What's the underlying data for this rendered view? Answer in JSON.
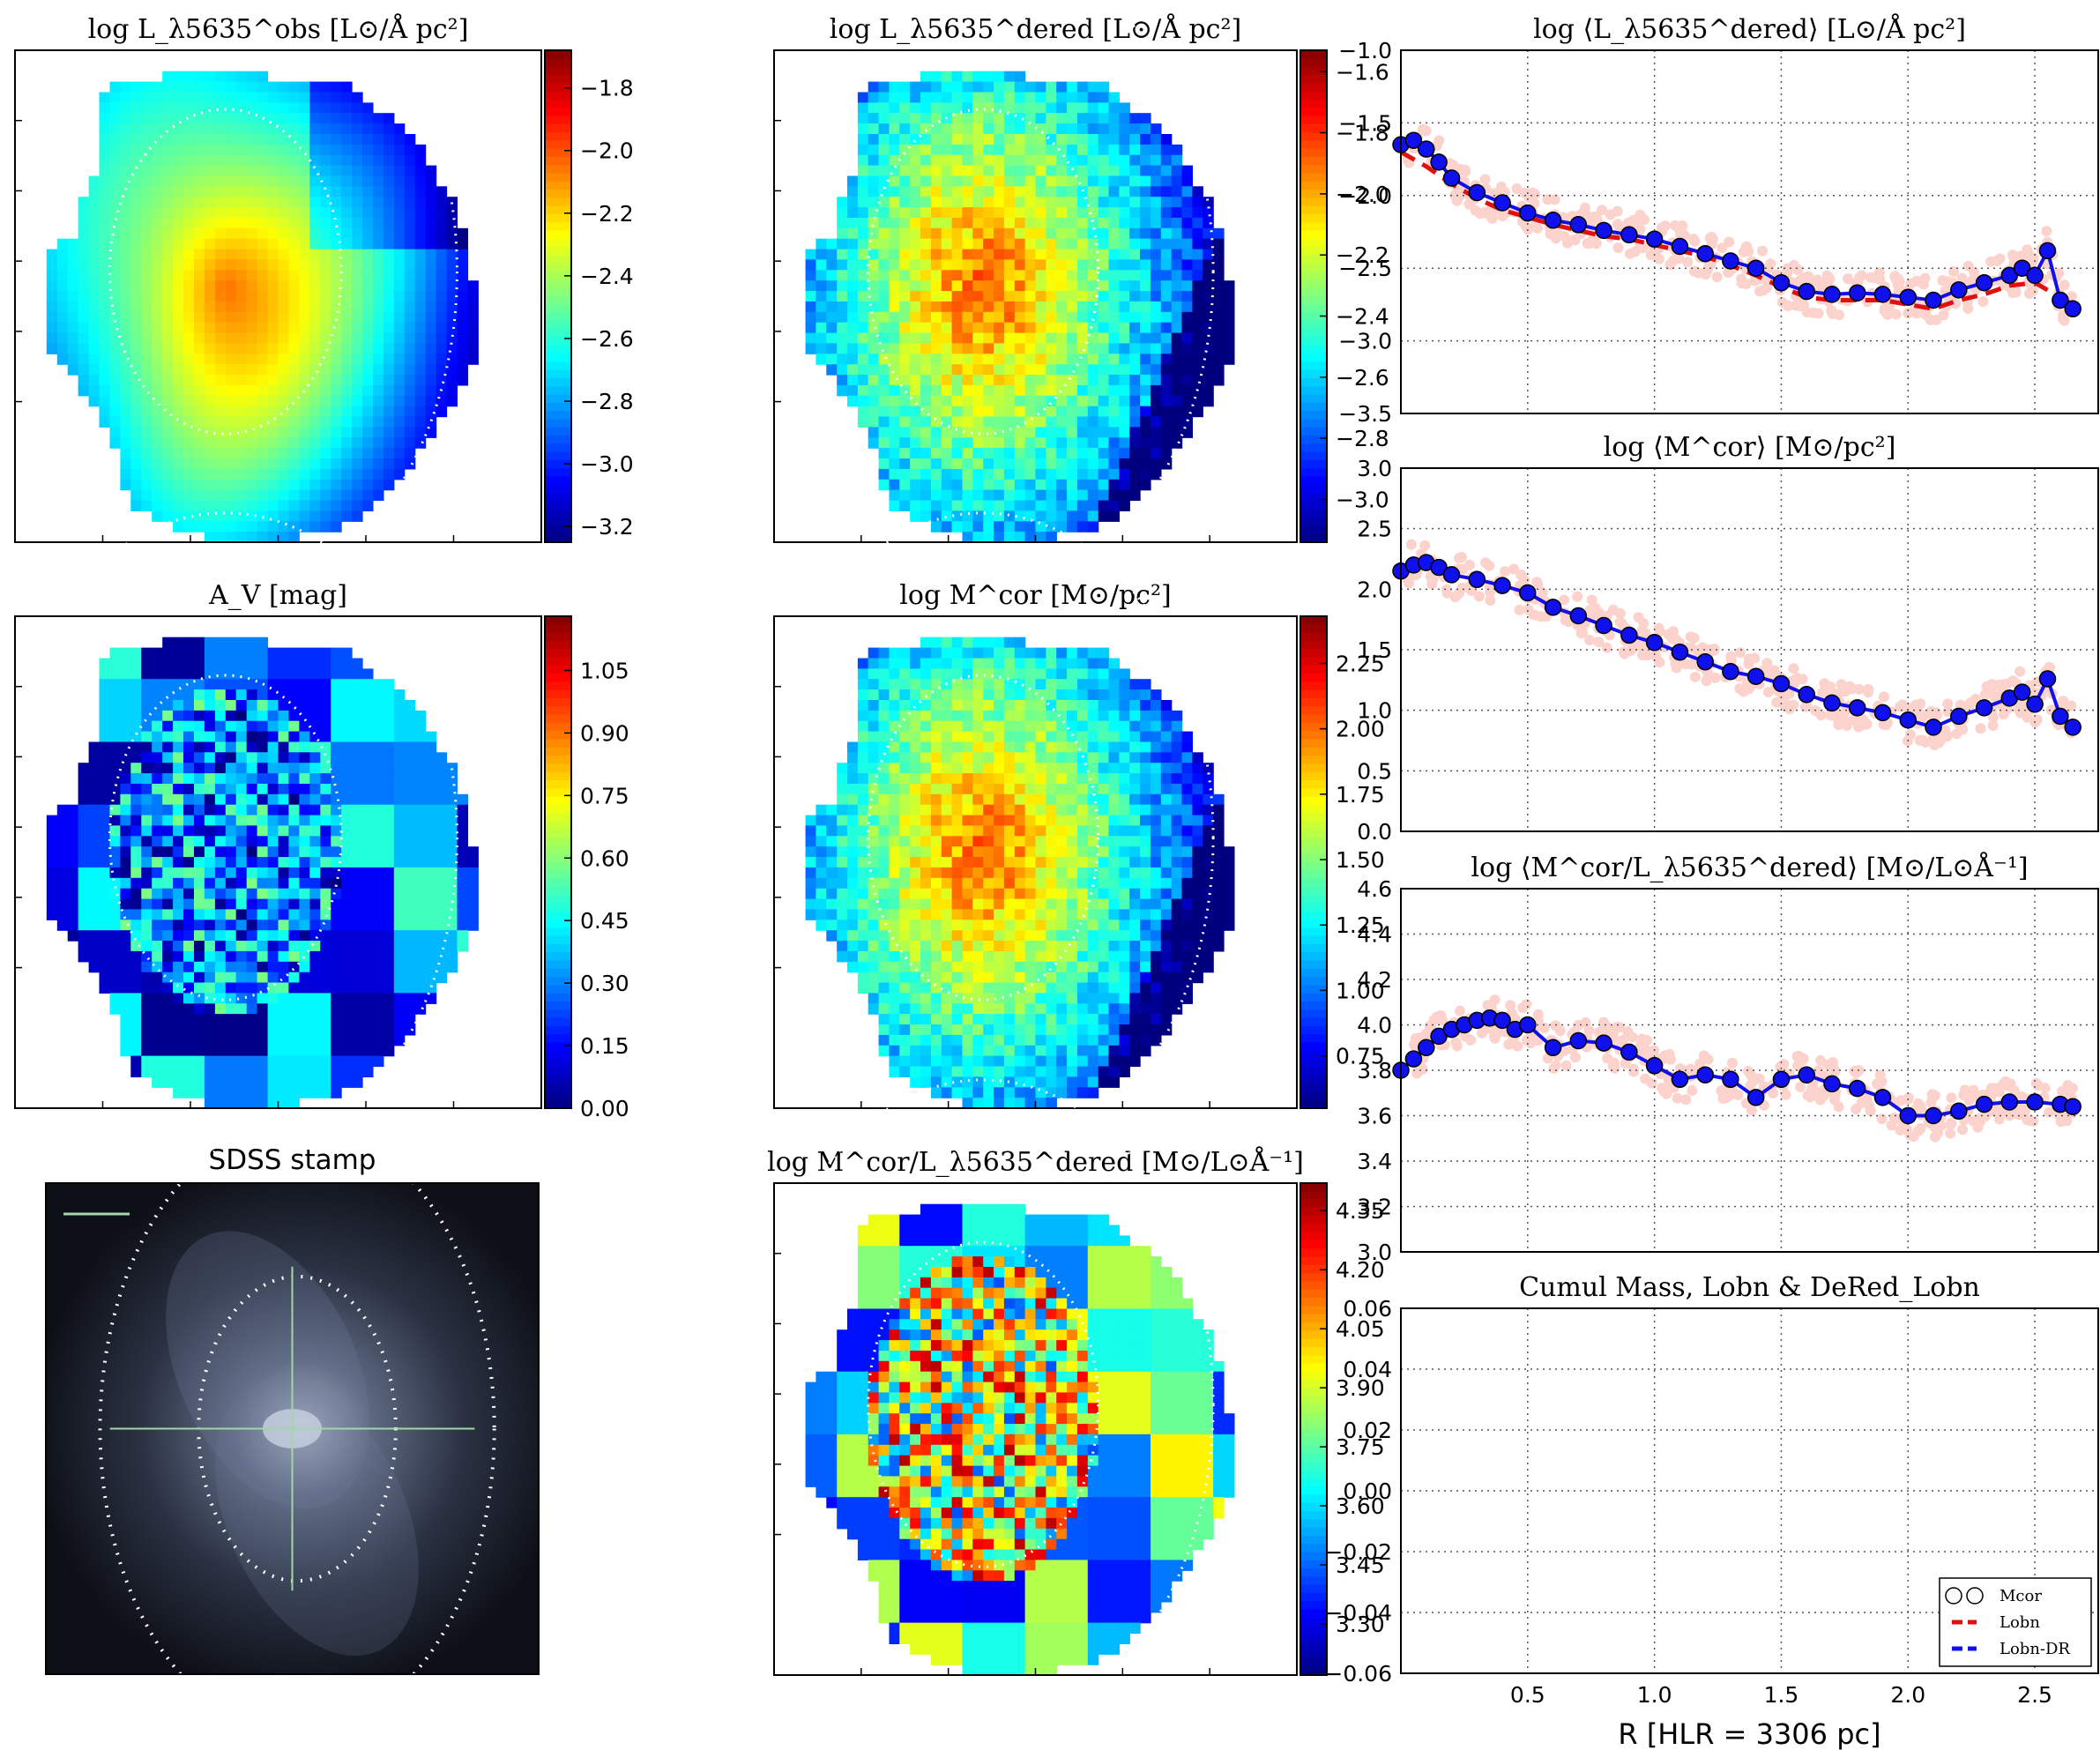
{
  "colors": {
    "jet": [
      "#00007f",
      "#0000ff",
      "#007fff",
      "#00ffff",
      "#7fff7f",
      "#ffff00",
      "#ff7f00",
      "#ff0000",
      "#7f0000"
    ],
    "pink": "#fbd2cc",
    "blue_line": "#1010ee",
    "dashed_red": "#e01010",
    "grid": "#555555"
  },
  "maps": [
    {
      "id": "Lobs",
      "title": "log L_λ5635^obs [L⊙/Å pc²]",
      "cbar": {
        "ticks": [
          "−1.8",
          "−2.0",
          "−2.2",
          "−2.4",
          "−2.6",
          "−2.8",
          "−3.0",
          "−3.2"
        ],
        "min": -3.25,
        "max": -1.68
      },
      "style": "smooth"
    },
    {
      "id": "Ldered",
      "title": "log L_λ5635^dered [L⊙/Å pc²]",
      "cbar": {
        "ticks": [
          "−1.6",
          "−1.8",
          "−2.0",
          "−2.2",
          "−2.4",
          "−2.6",
          "−2.8",
          "−3.0"
        ],
        "min": -3.14,
        "max": -1.53
      },
      "style": "noisy"
    },
    {
      "id": "Av",
      "title": "A_V [mag]",
      "cbar": {
        "ticks": [
          "1.05",
          "0.90",
          "0.75",
          "0.60",
          "0.45",
          "0.30",
          "0.15",
          "0.00"
        ],
        "min": 0.0,
        "max": 1.18
      },
      "style": "patch"
    },
    {
      "id": "Mcor",
      "title": "log M^cor [M⊙/pc²]",
      "cbar": {
        "ticks": [
          "2.25",
          "2.00",
          "1.75",
          "1.50",
          "1.25",
          "1.00",
          "0.75"
        ],
        "min": 0.55,
        "max": 2.43
      },
      "style": "noisy"
    },
    {
      "id": "ML",
      "title": "log M^cor/L_λ5635^dered [M⊙/L⊙Å⁻¹]",
      "cbar": {
        "ticks": [
          "4.35",
          "4.20",
          "4.05",
          "3.90",
          "3.75",
          "3.60",
          "3.45",
          "3.30"
        ],
        "min": 3.17,
        "max": 4.42
      },
      "style": "patch"
    }
  ],
  "sdss_title": "SDSS stamp",
  "chart_data": [
    {
      "type": "line",
      "title": "log ⟨L_λ5635^dered⟩ [L⊙/Å pc²]",
      "ylim": [
        -3.5,
        -1.0
      ],
      "yticks": [
        "−1.0",
        "−1.5",
        "−2.0",
        "−2.5",
        "−3.0",
        "−3.5"
      ],
      "xlim": [
        0,
        2.75
      ],
      "grid": true,
      "series": [
        {
          "x": [
            0.0,
            0.05,
            0.1,
            0.15,
            0.2,
            0.3,
            0.4,
            0.5,
            0.6,
            0.7,
            0.8,
            0.9,
            1.0,
            1.1,
            1.2,
            1.3,
            1.4,
            1.5,
            1.6,
            1.7,
            1.8,
            1.9,
            2.0,
            2.1,
            2.2,
            2.3,
            2.4,
            2.45,
            2.5,
            2.55,
            2.6,
            2.65
          ],
          "y": [
            -1.65,
            -1.62,
            -1.68,
            -1.77,
            -1.88,
            -1.98,
            -2.05,
            -2.12,
            -2.17,
            -2.2,
            -2.24,
            -2.27,
            -2.3,
            -2.35,
            -2.4,
            -2.45,
            -2.5,
            -2.6,
            -2.66,
            -2.68,
            -2.67,
            -2.68,
            -2.7,
            -2.72,
            -2.65,
            -2.6,
            -2.55,
            -2.5,
            -2.55,
            -2.38,
            -2.72,
            -2.78
          ]
        },
        {
          "x": [
            0.0,
            0.1,
            0.2,
            0.3,
            0.4,
            0.5,
            0.6,
            0.7,
            0.8,
            0.9,
            1.0,
            1.1,
            1.2,
            1.3,
            1.4,
            1.5,
            1.6,
            1.7,
            1.8,
            1.9,
            2.0,
            2.1,
            2.2,
            2.3,
            2.4,
            2.5,
            2.6,
            2.65
          ],
          "y": [
            -1.7,
            -1.8,
            -1.92,
            -2.02,
            -2.1,
            -2.15,
            -2.2,
            -2.24,
            -2.28,
            -2.3,
            -2.34,
            -2.38,
            -2.42,
            -2.48,
            -2.55,
            -2.63,
            -2.7,
            -2.72,
            -2.72,
            -2.72,
            -2.75,
            -2.78,
            -2.72,
            -2.68,
            -2.62,
            -2.6,
            -2.7,
            -2.75
          ]
        }
      ]
    },
    {
      "type": "line",
      "title": "log ⟨M^cor⟩ [M⊙/pc²]",
      "ylim": [
        0.0,
        3.0
      ],
      "yticks": [
        "3.0",
        "2.5",
        "2.0",
        "1.5",
        "1.0",
        "0.5",
        "0.0"
      ],
      "xlim": [
        0,
        2.75
      ],
      "grid": true,
      "series": [
        {
          "x": [
            0.0,
            0.05,
            0.1,
            0.15,
            0.2,
            0.3,
            0.4,
            0.5,
            0.6,
            0.7,
            0.8,
            0.9,
            1.0,
            1.1,
            1.2,
            1.3,
            1.4,
            1.5,
            1.6,
            1.7,
            1.8,
            1.9,
            2.0,
            2.1,
            2.2,
            2.3,
            2.4,
            2.45,
            2.5,
            2.55,
            2.6,
            2.65
          ],
          "y": [
            2.15,
            2.2,
            2.22,
            2.18,
            2.12,
            2.08,
            2.03,
            1.97,
            1.85,
            1.78,
            1.7,
            1.62,
            1.56,
            1.48,
            1.4,
            1.32,
            1.28,
            1.22,
            1.13,
            1.06,
            1.02,
            0.98,
            0.92,
            0.86,
            0.95,
            1.02,
            1.1,
            1.15,
            1.05,
            1.26,
            0.95,
            0.86
          ]
        }
      ]
    },
    {
      "type": "line",
      "title": "log ⟨M^cor/L_λ5635^dered⟩ [M⊙/L⊙Å⁻¹]",
      "ylim": [
        3.0,
        4.6
      ],
      "yticks": [
        "4.6",
        "4.4",
        "4.2",
        "4.0",
        "3.8",
        "3.6",
        "3.4",
        "3.2",
        "3.0"
      ],
      "xlim": [
        0,
        2.75
      ],
      "grid": true,
      "series": [
        {
          "x": [
            0.0,
            0.05,
            0.1,
            0.15,
            0.2,
            0.25,
            0.3,
            0.35,
            0.4,
            0.45,
            0.5,
            0.6,
            0.7,
            0.8,
            0.9,
            1.0,
            1.1,
            1.2,
            1.3,
            1.4,
            1.5,
            1.6,
            1.7,
            1.8,
            1.9,
            2.0,
            2.1,
            2.2,
            2.3,
            2.4,
            2.5,
            2.6,
            2.65
          ],
          "y": [
            3.8,
            3.85,
            3.9,
            3.95,
            3.98,
            4.0,
            4.02,
            4.03,
            4.02,
            3.98,
            4.0,
            3.9,
            3.93,
            3.92,
            3.88,
            3.82,
            3.76,
            3.78,
            3.76,
            3.68,
            3.76,
            3.78,
            3.74,
            3.72,
            3.68,
            3.6,
            3.6,
            3.62,
            3.65,
            3.66,
            3.66,
            3.65,
            3.64
          ]
        }
      ]
    },
    {
      "type": "line",
      "title": "Cumul Mass, Lobn & DeRed_Lobn",
      "xlabel": "R [HLR = 3306 pc]",
      "ylim": [
        -0.06,
        0.06
      ],
      "yticks": [
        "0.06",
        "0.04",
        "0.02",
        "0.00",
        "−0.02",
        "−0.04",
        "−0.06"
      ],
      "xticks": [
        "0.5",
        "1.0",
        "1.5",
        "2.0",
        "2.5"
      ],
      "xlim": [
        0,
        2.75
      ],
      "grid": true,
      "legend_position": "bottom-right",
      "legend": [
        "Mcor",
        "Lobn",
        "Lobn-DR"
      ]
    }
  ]
}
